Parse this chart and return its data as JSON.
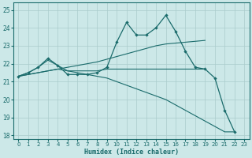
{
  "xlabel": "Humidex (Indice chaleur)",
  "xlim": [
    -0.5,
    23.5
  ],
  "ylim": [
    17.8,
    25.4
  ],
  "yticks": [
    18,
    19,
    20,
    21,
    22,
    23,
    24,
    25
  ],
  "xticks": [
    0,
    1,
    2,
    3,
    4,
    5,
    6,
    7,
    8,
    9,
    10,
    11,
    12,
    13,
    14,
    15,
    16,
    17,
    18,
    19,
    20,
    21,
    22,
    23
  ],
  "bg_color": "#cce8e8",
  "line_color": "#1a6b6b",
  "grid_color": "#aacccc",
  "curve_main": {
    "x": [
      0,
      1,
      2,
      3,
      4,
      5,
      6,
      7,
      8,
      9,
      10,
      11,
      12,
      13,
      14,
      15,
      16,
      17,
      18,
      19,
      20,
      21,
      22
    ],
    "y": [
      21.3,
      21.5,
      21.8,
      22.3,
      21.9,
      21.4,
      21.4,
      21.4,
      21.5,
      21.8,
      23.2,
      24.3,
      23.6,
      23.6,
      24.0,
      24.7,
      23.8,
      22.7,
      21.8,
      21.7,
      21.2,
      19.4,
      18.2
    ]
  },
  "curve_flat": {
    "x": [
      0,
      1,
      2,
      3,
      4,
      5,
      6,
      7,
      8,
      9,
      10,
      11,
      12,
      13,
      14,
      15,
      16,
      17,
      18,
      19
    ],
    "y": [
      21.3,
      21.5,
      21.8,
      22.2,
      21.9,
      21.6,
      21.6,
      21.6,
      21.6,
      21.7,
      21.7,
      21.7,
      21.7,
      21.7,
      21.7,
      21.7,
      21.7,
      21.7,
      21.7,
      21.7
    ]
  },
  "curve_rise": {
    "x": [
      0,
      1,
      2,
      3,
      4,
      5,
      6,
      7,
      8,
      9,
      10,
      11,
      12,
      13,
      14,
      15,
      16,
      17,
      18,
      19
    ],
    "y": [
      21.3,
      21.4,
      21.5,
      21.6,
      21.7,
      21.8,
      21.9,
      22.0,
      22.1,
      22.25,
      22.4,
      22.55,
      22.7,
      22.85,
      23.0,
      23.1,
      23.15,
      23.2,
      23.25,
      23.3
    ]
  },
  "curve_decline": {
    "x": [
      0,
      1,
      2,
      3,
      4,
      5,
      6,
      7,
      8,
      9,
      10,
      11,
      12,
      13,
      14,
      15,
      16,
      17,
      18,
      19,
      20,
      21,
      22
    ],
    "y": [
      21.3,
      21.4,
      21.5,
      21.6,
      21.7,
      21.6,
      21.5,
      21.4,
      21.3,
      21.2,
      21.0,
      20.8,
      20.6,
      20.4,
      20.2,
      20.0,
      19.7,
      19.4,
      19.1,
      18.8,
      18.5,
      18.2,
      18.2
    ]
  }
}
